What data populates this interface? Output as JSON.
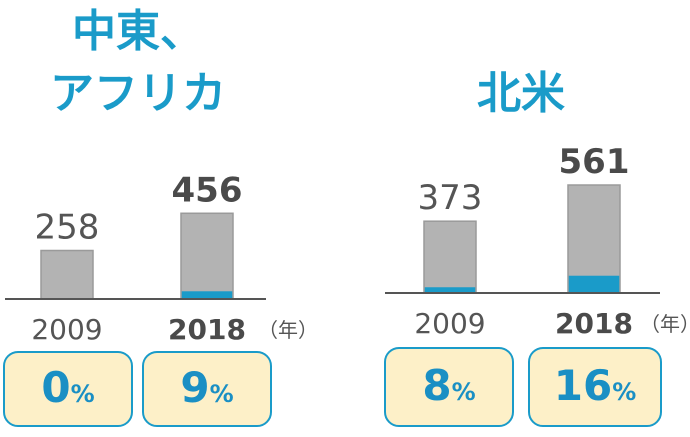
{
  "chart_data": [
    {
      "type": "bar",
      "title": "中東、アフリカ",
      "title_lines": [
        "中東、",
        "アフリカ"
      ],
      "categories": [
        "2009",
        "2018"
      ],
      "values": [
        258,
        456
      ],
      "share_percent": [
        0,
        9
      ],
      "share_labels": [
        "0%",
        "9%"
      ],
      "bold_category": "2018",
      "unit_label": "（年）",
      "colors": {
        "total": "#b3b3b3",
        "share": "#1a9bc9",
        "title": "#1a9bc9"
      }
    },
    {
      "type": "bar",
      "title": "北米",
      "title_lines": [
        "北米"
      ],
      "categories": [
        "2009",
        "2018"
      ],
      "values": [
        373,
        561
      ],
      "share_percent": [
        8,
        16
      ],
      "share_labels": [
        "8%",
        "16%"
      ],
      "bold_category": "2018",
      "unit_label": "（年）",
      "colors": {
        "total": "#b3b3b3",
        "share": "#1a9bc9",
        "title": "#1a9bc9"
      }
    }
  ]
}
